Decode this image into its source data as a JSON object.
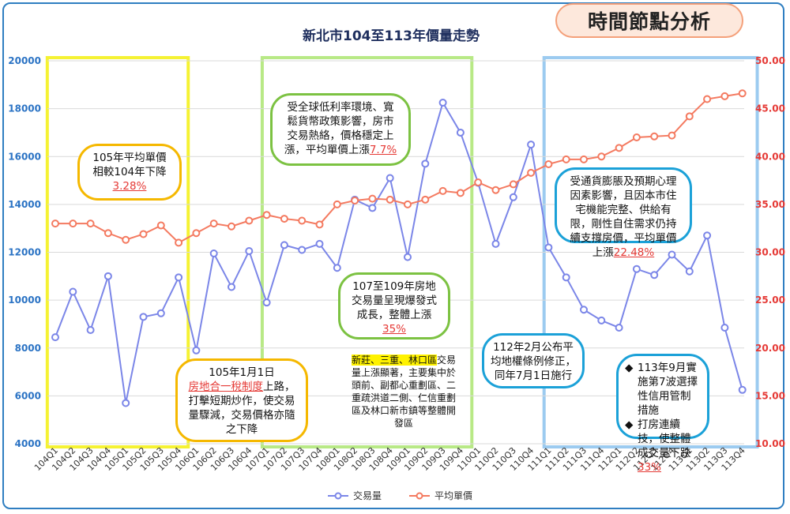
{
  "header": {
    "title": "新北市104至113年價量走勢",
    "badge": "時間節點分析"
  },
  "colors": {
    "volume": "#7b86e8",
    "price": "#f47a60",
    "left_axis": "#2b73c4",
    "right_axis": "#e53935",
    "yellow_box": "#f5f233",
    "green_box": "#b8e986",
    "blue_box": "#9ccbf0"
  },
  "chart_data": {
    "type": "line",
    "categories": [
      "104Q1",
      "104Q2",
      "104Q3",
      "104Q4",
      "105Q1",
      "105Q2",
      "105Q3",
      "105Q4",
      "106Q1",
      "106Q2",
      "106Q3",
      "106Q4",
      "107Q1",
      "107Q2",
      "107Q3",
      "107Q4",
      "108Q1",
      "108Q2",
      "108Q3",
      "108Q4",
      "109Q1",
      "109Q2",
      "109Q3",
      "109Q4",
      "110Q1",
      "110Q2",
      "110Q3",
      "110Q4",
      "111Q1",
      "111Q2",
      "111Q3",
      "111Q4",
      "112Q1",
      "112Q2",
      "112Q3",
      "112Q4",
      "113Q1",
      "113Q2",
      "113Q3",
      "113Q4"
    ],
    "series": [
      {
        "name": "交易量",
        "axis": "left",
        "values": [
          8450,
          10350,
          8750,
          11000,
          5700,
          9300,
          9450,
          10950,
          7900,
          11950,
          10550,
          12050,
          9900,
          12300,
          12100,
          12350,
          11350,
          14200,
          13850,
          15100,
          11800,
          15700,
          18250,
          17000,
          14900,
          12350,
          14300,
          16500,
          12200,
          10950,
          9600,
          9150,
          8850,
          11300,
          11050,
          11900,
          11200,
          12700,
          8850,
          6250
        ]
      },
      {
        "name": "平均單價",
        "axis": "right",
        "values": [
          33.0,
          33.0,
          33.0,
          32.0,
          31.3,
          31.9,
          32.8,
          31.0,
          32.0,
          33.0,
          32.7,
          33.3,
          33.9,
          33.5,
          33.3,
          32.9,
          35.0,
          35.4,
          35.6,
          35.5,
          35.0,
          35.5,
          36.4,
          36.2,
          37.3,
          36.5,
          37.1,
          38.3,
          39.2,
          39.7,
          39.7,
          40.0,
          40.9,
          42.0,
          42.1,
          42.2,
          44.2,
          46.0,
          46.3,
          46.6
        ]
      }
    ],
    "y_left": {
      "min": 4000,
      "max": 20000,
      "step": 2000,
      "ticks": [
        "20000",
        "18000",
        "16000",
        "14000",
        "12000",
        "10000",
        "8000",
        "6000",
        "4000"
      ]
    },
    "y_right": {
      "min": 10,
      "max": 50,
      "step": 5,
      "ticks": [
        "50.00",
        "45.00",
        "40.00",
        "35.00",
        "30.00",
        "25.00",
        "20.00",
        "15.00",
        "10.00"
      ]
    },
    "legend": {
      "position": "bottom",
      "items": [
        "交易量",
        "平均單價"
      ]
    },
    "grid": "horizontal"
  },
  "annotations": {
    "box_105_price": {
      "pre": "105年平均單價相較104年下降",
      "hl": "3.28%"
    },
    "box_105_tax": {
      "l1": "105年1月1日",
      "hl": "房地合一稅制度",
      "l2": "上路，打擊短期炒作，使交易量驟減，交易價格亦隨之下降"
    },
    "box_global": {
      "pre": "受全球低利率環境、寬鬆貨幣政策影響，房市交易熱絡，價格穩定上漲，平均單價上漲",
      "hl": "7.7%"
    },
    "box_107": {
      "pre": "107至109年房地交易量呈現爆發式成長，整體上漲",
      "hl": "35%"
    },
    "plain_areas": {
      "mark": "新莊、三重、林口區",
      "rest": "交易量上漲顯著，主要集中於頭前、副都心重劃區、二重疏洪道二側、仁信重劃區及林口新市鎮等整體開發區"
    },
    "box_112": {
      "text": "112年2月公布平均地權條例修正，同年7月1日施行"
    },
    "box_inflation": {
      "pre": "受通貨膨脹及預期心理因素影響，且因本市住宅機能完整、供給有限，剛性自住需求仍持續支撐房價，平均單價上漲",
      "hl": "22.48%"
    },
    "box_113": {
      "bullet": "◆",
      "b1": "113年9月實施第7波選擇性信用管制措施",
      "b2": "打房連續技，使整體成交量下跌",
      "hl": "33%"
    }
  }
}
